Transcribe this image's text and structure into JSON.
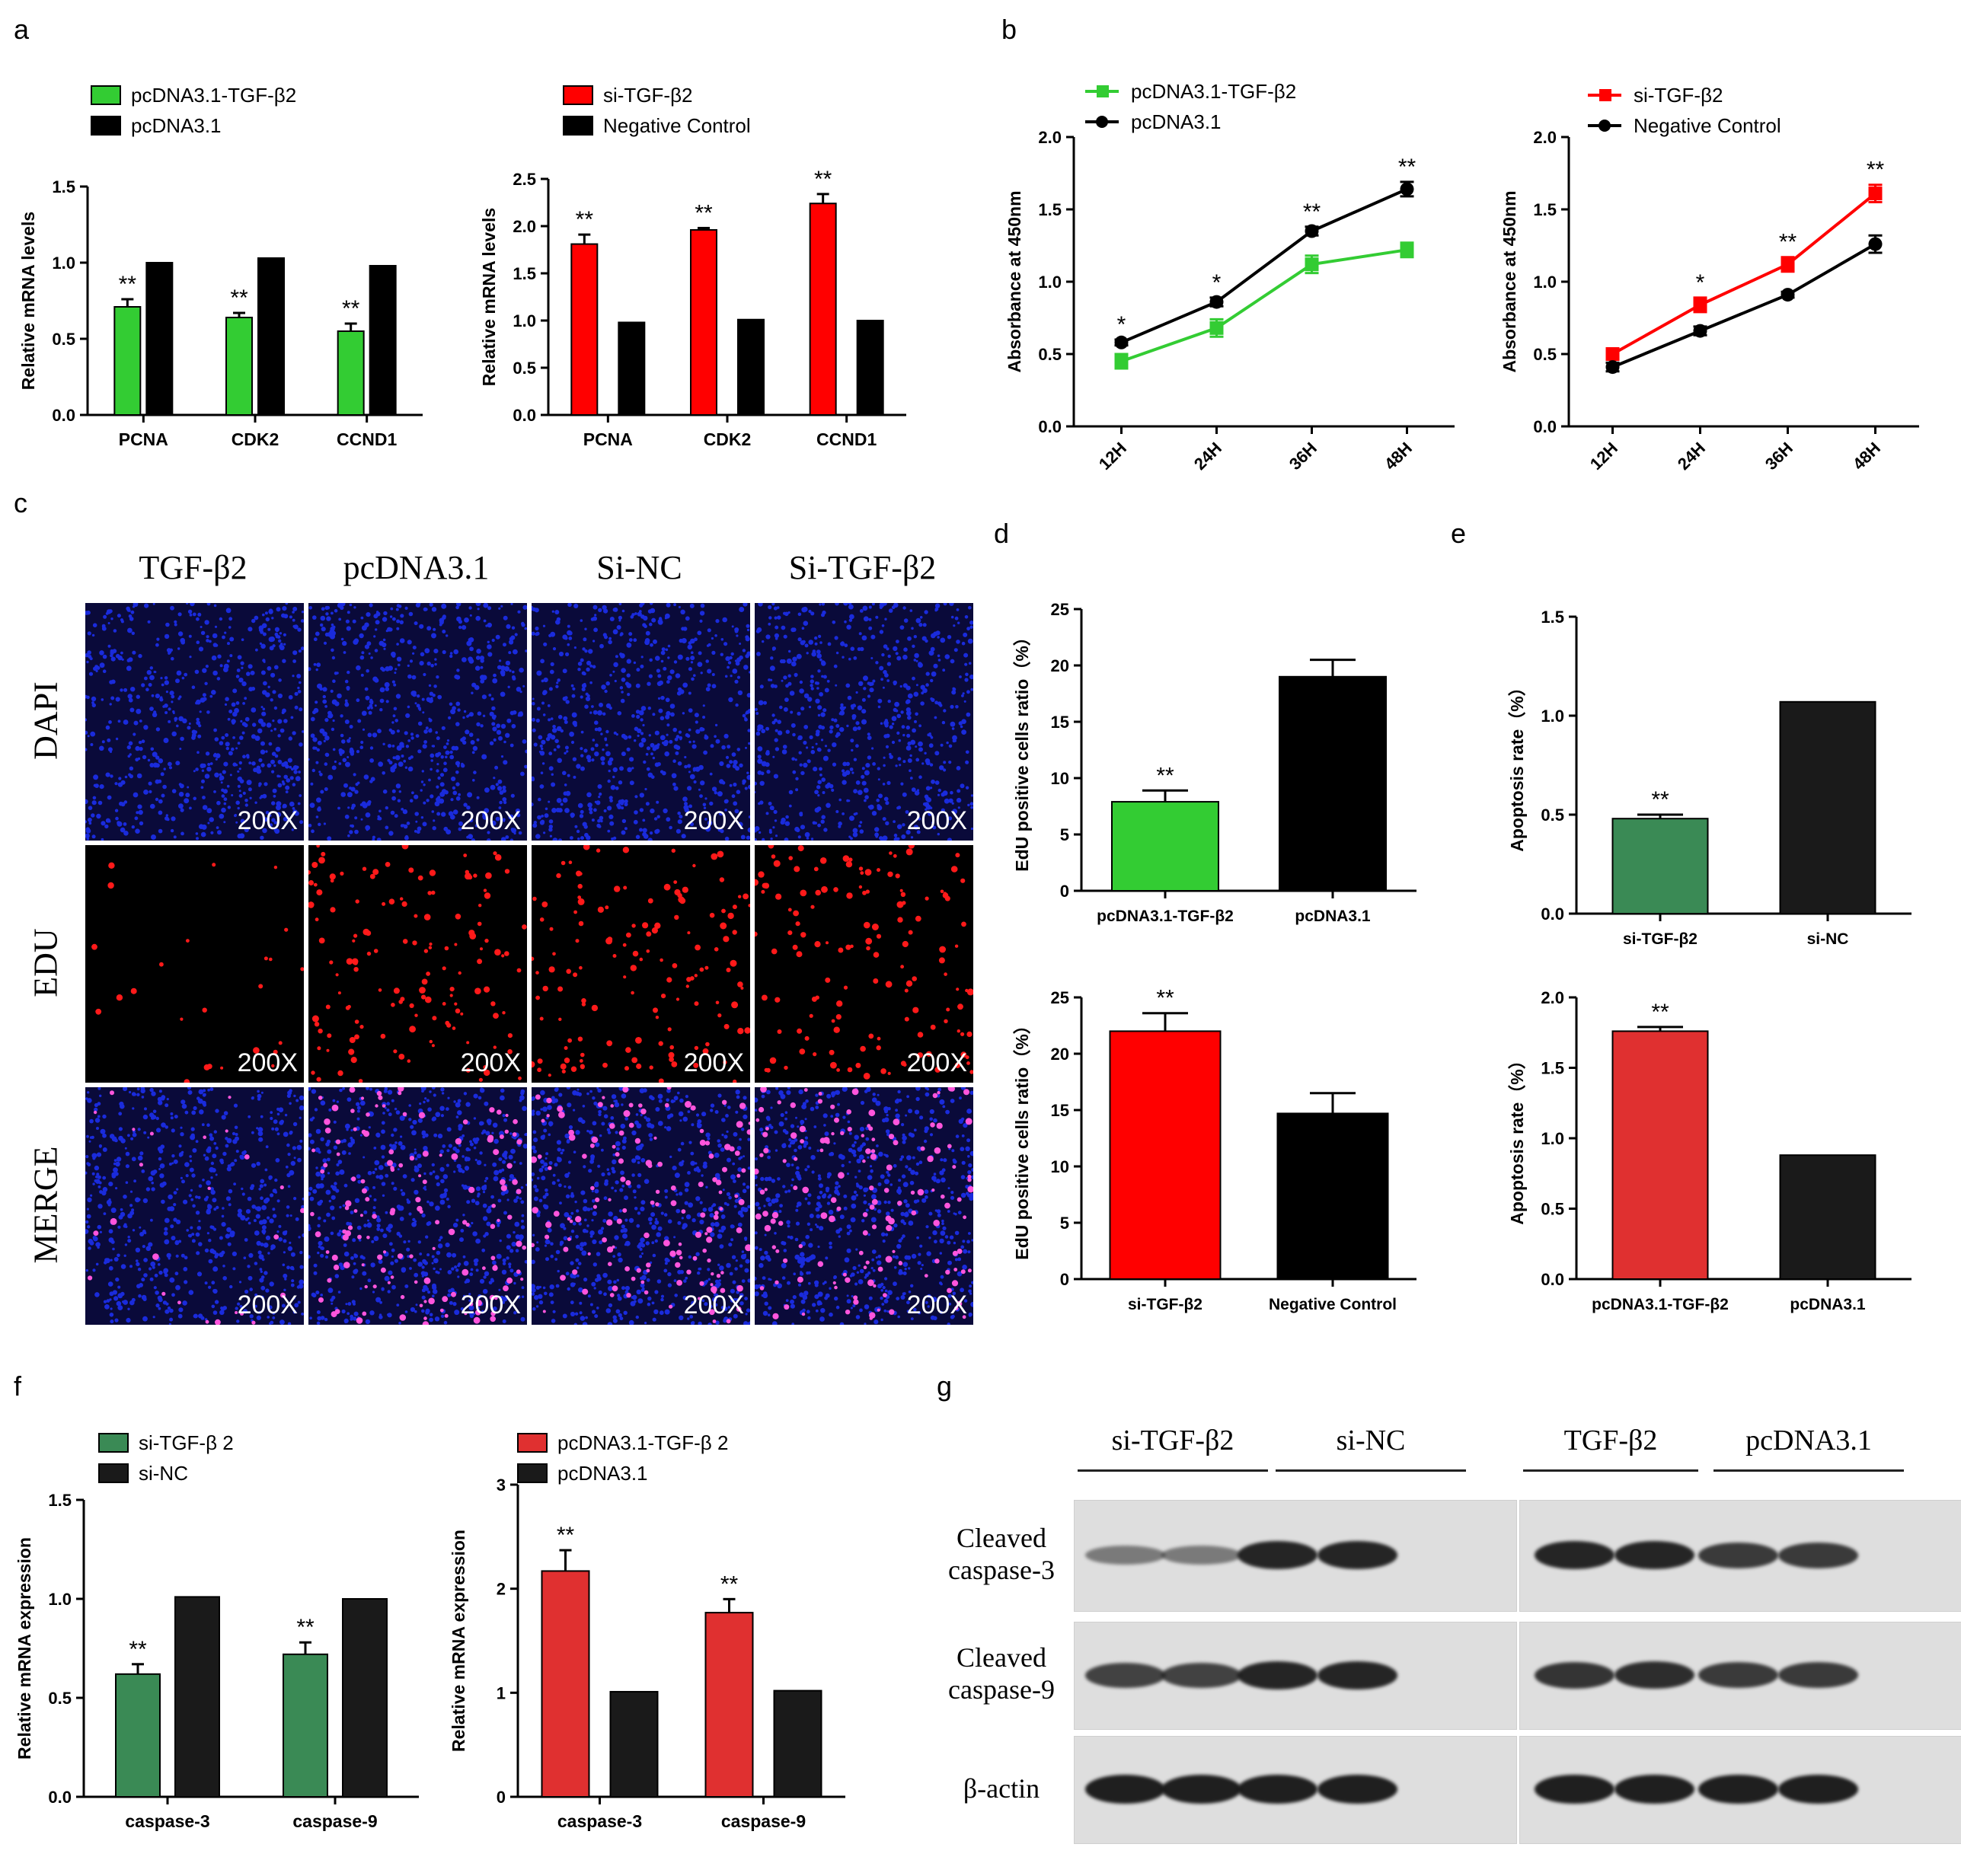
{
  "panel_labels": {
    "a": "a",
    "b": "b",
    "c": "c",
    "d": "d",
    "e": "e",
    "f": "f",
    "g": "g"
  },
  "colors": {
    "green": "#33cc33",
    "red": "#ff0000",
    "black": "#000000",
    "dark_green": "#3a8a55",
    "dark_red": "#e03030",
    "blue_cell": "#1a2bdc",
    "red_cell": "#ff1a1a",
    "magenta_cell": "#ff55dd"
  },
  "chart_data": [
    {
      "id": "a1",
      "type": "bar",
      "title": "",
      "ylabel": "Relative mRNA levels",
      "xlabel": "",
      "categories": [
        "PCNA",
        "CDK2",
        "CCND1"
      ],
      "ylim": [
        0,
        1.5
      ],
      "yticks": [
        "0.0",
        "0.5",
        "1.0",
        "1.5"
      ],
      "ytick_vals": [
        0,
        0.5,
        1.0,
        1.5
      ],
      "series": [
        {
          "name": "pcDNA3.1-TGF-β2",
          "color": "#33cc33",
          "values": [
            0.71,
            0.64,
            0.55
          ],
          "errors": [
            0.05,
            0.03,
            0.05
          ]
        },
        {
          "name": "pcDNA3.1",
          "color": "#000000",
          "values": [
            1.0,
            1.03,
            0.98
          ],
          "errors": [
            0,
            0,
            0
          ]
        }
      ],
      "annotations": [
        "**",
        "**",
        "**"
      ]
    },
    {
      "id": "a2",
      "type": "bar",
      "title": "",
      "ylabel": "Relative mRNA levels",
      "xlabel": "",
      "categories": [
        "PCNA",
        "CDK2",
        "CCND1"
      ],
      "ylim": [
        0,
        2.5
      ],
      "yticks": [
        "0.0",
        "0.5",
        "1.0",
        "1.5",
        "2.0",
        "2.5"
      ],
      "ytick_vals": [
        0,
        0.5,
        1.0,
        1.5,
        2.0,
        2.5
      ],
      "series": [
        {
          "name": "si-TGF-β2",
          "color": "#ff0000",
          "values": [
            1.81,
            1.96,
            2.24
          ],
          "errors": [
            0.1,
            0.02,
            0.1
          ]
        },
        {
          "name": "Negative Control",
          "color": "#000000",
          "values": [
            0.98,
            1.01,
            1.0
          ],
          "errors": [
            0,
            0,
            0
          ]
        }
      ],
      "annotations": [
        "**",
        "**",
        "**"
      ]
    },
    {
      "id": "b1",
      "type": "line",
      "title": "",
      "ylabel": "Absorbance at 450nm",
      "xlabel": "",
      "x": [
        "12H",
        "24H",
        "36H",
        "48H"
      ],
      "ylim": [
        0,
        2.0
      ],
      "yticks": [
        "0.0",
        "0.5",
        "1.0",
        "1.5",
        "2.0"
      ],
      "ytick_vals": [
        0,
        0.5,
        1.0,
        1.5,
        2.0
      ],
      "series": [
        {
          "name": "pcDNA3.1-TGF-β2",
          "color": "#33cc33",
          "values": [
            0.45,
            0.68,
            1.12,
            1.22
          ],
          "errors": [
            0.05,
            0.06,
            0.06,
            0.05
          ]
        },
        {
          "name": "pcDNA3.1",
          "color": "#000000",
          "values": [
            0.58,
            0.86,
            1.35,
            1.64
          ],
          "errors": [
            0.02,
            0.03,
            0.03,
            0.05
          ]
        }
      ],
      "annotations": [
        "*",
        "*",
        "**",
        "**"
      ]
    },
    {
      "id": "b2",
      "type": "line",
      "title": "",
      "ylabel": "Absorbance at 450nm",
      "xlabel": "",
      "x": [
        "12H",
        "24H",
        "36H",
        "48H"
      ],
      "ylim": [
        0,
        2.0
      ],
      "yticks": [
        "0.0",
        "0.5",
        "1.0",
        "1.5",
        "2.0"
      ],
      "ytick_vals": [
        0,
        0.5,
        1.0,
        1.5,
        2.0
      ],
      "series": [
        {
          "name": "si-TGF-β2",
          "color": "#ff0000",
          "values": [
            0.5,
            0.84,
            1.12,
            1.61
          ],
          "errors": [
            0.03,
            0.05,
            0.05,
            0.06
          ]
        },
        {
          "name": "Negative Control",
          "color": "#000000",
          "values": [
            0.41,
            0.66,
            0.91,
            1.26
          ],
          "errors": [
            0.03,
            0.03,
            0.02,
            0.06
          ]
        }
      ],
      "annotations": [
        "",
        "*",
        "**",
        "**"
      ]
    },
    {
      "id": "d1",
      "type": "bar",
      "title": "",
      "ylabel": "EdU positive cells ratio（%）",
      "xlabel": "",
      "categories": [
        "pcDNA3.1-TGF-β2",
        "pcDNA3.1"
      ],
      "ylim": [
        0,
        25
      ],
      "yticks": [
        "0",
        "5",
        "10",
        "15",
        "20",
        "25"
      ],
      "ytick_vals": [
        0,
        5,
        10,
        15,
        20,
        25
      ],
      "series": [
        {
          "name": "",
          "colors": [
            "#33cc33",
            "#000000"
          ],
          "values": [
            7.9,
            19.0
          ],
          "errors": [
            1.0,
            1.5
          ]
        }
      ],
      "annotations": [
        "**",
        ""
      ]
    },
    {
      "id": "d2",
      "type": "bar",
      "title": "",
      "ylabel": "EdU positive cells ratio（%）",
      "xlabel": "",
      "categories": [
        "si-TGF-β2",
        "Negative Control"
      ],
      "ylim": [
        0,
        25
      ],
      "yticks": [
        "0",
        "5",
        "10",
        "15",
        "20",
        "25"
      ],
      "ytick_vals": [
        0,
        5,
        10,
        15,
        20,
        25
      ],
      "series": [
        {
          "name": "",
          "colors": [
            "#ff0000",
            "#000000"
          ],
          "values": [
            22.0,
            14.7
          ],
          "errors": [
            1.6,
            1.8
          ]
        }
      ],
      "annotations": [
        "**",
        ""
      ]
    },
    {
      "id": "e1",
      "type": "bar",
      "title": "",
      "ylabel": "Apoptosis rate（%）",
      "xlabel": "",
      "categories": [
        "si-TGF-β2",
        "si-NC"
      ],
      "ylim": [
        0,
        1.5
      ],
      "yticks": [
        "0.0",
        "0.5",
        "1.0",
        "1.5"
      ],
      "ytick_vals": [
        0,
        0.5,
        1.0,
        1.5
      ],
      "series": [
        {
          "name": "",
          "colors": [
            "#3a8a55",
            "#1a1a1a"
          ],
          "values": [
            0.48,
            1.07
          ],
          "errors": [
            0.02,
            0
          ]
        }
      ],
      "annotations": [
        "**",
        ""
      ]
    },
    {
      "id": "e2",
      "type": "bar",
      "title": "",
      "ylabel": "Apoptosis rate（%）",
      "xlabel": "",
      "categories": [
        "pcDNA3.1-TGF-β2",
        "pcDNA3.1"
      ],
      "ylim": [
        0,
        2.0
      ],
      "yticks": [
        "0.0",
        "0.5",
        "1.0",
        "1.5",
        "2.0"
      ],
      "ytick_vals": [
        0,
        0.5,
        1.0,
        1.5,
        2.0
      ],
      "series": [
        {
          "name": "",
          "colors": [
            "#e03030",
            "#1a1a1a"
          ],
          "values": [
            1.76,
            0.88
          ],
          "errors": [
            0.03,
            0
          ]
        }
      ],
      "annotations": [
        "**",
        ""
      ]
    },
    {
      "id": "f1",
      "type": "bar",
      "title": "",
      "ylabel": "Relative mRNA expression",
      "xlabel": "",
      "categories": [
        "caspase-3",
        "caspase-9"
      ],
      "ylim": [
        0,
        1.5
      ],
      "yticks": [
        "0.0",
        "0.5",
        "1.0",
        "1.5"
      ],
      "ytick_vals": [
        0,
        0.5,
        1.0,
        1.5
      ],
      "series": [
        {
          "name": "si-TGF-β 2",
          "color": "#3a8a55",
          "values": [
            0.62,
            0.72
          ],
          "errors": [
            0.05,
            0.06
          ]
        },
        {
          "name": "si-NC",
          "color": "#1a1a1a",
          "values": [
            1.01,
            1.0
          ],
          "errors": [
            0,
            0
          ]
        }
      ],
      "annotations": [
        "**",
        "**"
      ]
    },
    {
      "id": "f2",
      "type": "bar",
      "title": "",
      "ylabel": "Relative mRNA expression",
      "xlabel": "",
      "categories": [
        "caspase-3",
        "caspase-9"
      ],
      "ylim": [
        0,
        3
      ],
      "yticks": [
        "0",
        "1",
        "2",
        "3"
      ],
      "ytick_vals": [
        0,
        1,
        2,
        3
      ],
      "series": [
        {
          "name": "pcDNA3.1-TGF-β 2",
          "color": "#e03030",
          "values": [
            2.17,
            1.77
          ],
          "errors": [
            0.2,
            0.13
          ]
        },
        {
          "name": "pcDNA3.1",
          "color": "#1a1a1a",
          "values": [
            1.01,
            1.02
          ],
          "errors": [
            0,
            0
          ]
        }
      ],
      "annotations": [
        "**",
        "**"
      ]
    }
  ],
  "microscopy": {
    "columns": [
      "TGF-β2",
      "pcDNA3.1",
      "Si-NC",
      "Si-TGF-β2"
    ],
    "rows": [
      "DAPI",
      "EDU",
      "MERGE"
    ],
    "magnification": "200X"
  },
  "blot": {
    "groups": [
      "si-TGF-β2",
      "si-NC",
      "TGF-β2",
      "pcDNA3.1"
    ],
    "row_labels": [
      [
        "Cleaved",
        "caspase-3"
      ],
      [
        "Cleaved",
        "caspase-9"
      ],
      [
        "β-actin"
      ]
    ]
  }
}
